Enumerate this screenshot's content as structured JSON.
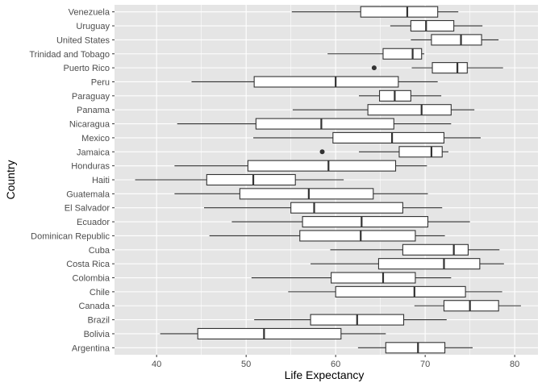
{
  "chart_data": {
    "type": "boxplot",
    "orientation": "horizontal",
    "xlabel": "Life Expectancy",
    "ylabel": "Country",
    "xlim": [
      35.3,
      82.6
    ],
    "x_ticks": [
      40,
      50,
      60,
      70,
      80
    ],
    "grid": true,
    "colors": {
      "panel": "#e5e5e5",
      "grid_major": "#ffffff",
      "box_fill": "#ffffff",
      "box_line": "#333333",
      "tick_label": "#4d4d4d"
    },
    "categories": [
      "Argentina",
      "Bolivia",
      "Brazil",
      "Canada",
      "Chile",
      "Colombia",
      "Costa Rica",
      "Cuba",
      "Dominican Republic",
      "Ecuador",
      "El Salvador",
      "Guatemala",
      "Haiti",
      "Honduras",
      "Jamaica",
      "Mexico",
      "Nicaragua",
      "Panama",
      "Paraguay",
      "Peru",
      "Puerto Rico",
      "Trinidad and Tobago",
      "United States",
      "Uruguay",
      "Venezuela"
    ],
    "boxes": [
      {
        "country": "Argentina",
        "min": 62.5,
        "q1": 65.6,
        "median": 69.2,
        "q3": 72.2,
        "max": 75.3,
        "outliers": []
      },
      {
        "country": "Bolivia",
        "min": 40.4,
        "q1": 44.6,
        "median": 52.0,
        "q3": 60.6,
        "max": 65.6,
        "outliers": []
      },
      {
        "country": "Brazil",
        "min": 50.9,
        "q1": 57.2,
        "median": 62.4,
        "q3": 67.6,
        "max": 72.4,
        "outliers": []
      },
      {
        "country": "Canada",
        "min": 68.8,
        "q1": 72.1,
        "median": 75.0,
        "q3": 78.2,
        "max": 80.7,
        "outliers": []
      },
      {
        "country": "Chile",
        "min": 54.7,
        "q1": 60.0,
        "median": 68.8,
        "q3": 74.5,
        "max": 78.6,
        "outliers": []
      },
      {
        "country": "Colombia",
        "min": 50.6,
        "q1": 59.5,
        "median": 65.3,
        "q3": 68.9,
        "max": 72.9,
        "outliers": []
      },
      {
        "country": "Costa Rica",
        "min": 57.2,
        "q1": 64.8,
        "median": 72.1,
        "q3": 76.1,
        "max": 78.8,
        "outliers": []
      },
      {
        "country": "Cuba",
        "min": 59.4,
        "q1": 67.5,
        "median": 73.2,
        "q3": 74.8,
        "max": 78.3,
        "outliers": []
      },
      {
        "country": "Dominican Republic",
        "min": 45.9,
        "q1": 56.0,
        "median": 62.8,
        "q3": 68.9,
        "max": 72.2,
        "outliers": []
      },
      {
        "country": "Ecuador",
        "min": 48.4,
        "q1": 56.3,
        "median": 62.9,
        "q3": 70.3,
        "max": 75.0,
        "outliers": []
      },
      {
        "country": "El Salvador",
        "min": 45.3,
        "q1": 55.0,
        "median": 57.6,
        "q3": 67.5,
        "max": 71.9,
        "outliers": []
      },
      {
        "country": "Guatemala",
        "min": 42.0,
        "q1": 49.3,
        "median": 57.0,
        "q3": 64.2,
        "max": 70.3,
        "outliers": []
      },
      {
        "country": "Haiti",
        "min": 37.6,
        "q1": 45.6,
        "median": 50.8,
        "q3": 55.5,
        "max": 60.9,
        "outliers": []
      },
      {
        "country": "Honduras",
        "min": 42.0,
        "q1": 50.2,
        "median": 59.2,
        "q3": 66.7,
        "max": 70.2,
        "outliers": []
      },
      {
        "country": "Jamaica",
        "min": 62.6,
        "q1": 67.1,
        "median": 70.7,
        "q3": 71.9,
        "max": 72.6,
        "outliers": [
          58.5
        ]
      },
      {
        "country": "Mexico",
        "min": 50.8,
        "q1": 59.7,
        "median": 66.3,
        "q3": 72.1,
        "max": 76.2,
        "outliers": []
      },
      {
        "country": "Nicaragua",
        "min": 42.3,
        "q1": 51.1,
        "median": 58.4,
        "q3": 66.5,
        "max": 72.9,
        "outliers": []
      },
      {
        "country": "Panama",
        "min": 55.2,
        "q1": 63.6,
        "median": 69.6,
        "q3": 72.9,
        "max": 75.5,
        "outliers": []
      },
      {
        "country": "Paraguay",
        "min": 62.6,
        "q1": 64.9,
        "median": 66.6,
        "q3": 68.4,
        "max": 71.8,
        "outliers": []
      },
      {
        "country": "Peru",
        "min": 43.9,
        "q1": 50.9,
        "median": 60.0,
        "q3": 67.0,
        "max": 71.4,
        "outliers": []
      },
      {
        "country": "Puerto Rico",
        "min": 68.5,
        "q1": 70.8,
        "median": 73.6,
        "q3": 74.7,
        "max": 78.7,
        "outliers": [
          64.3
        ]
      },
      {
        "country": "Trinidad and Tobago",
        "min": 59.1,
        "q1": 65.3,
        "median": 68.6,
        "q3": 69.6,
        "max": 69.9,
        "outliers": []
      },
      {
        "country": "United States",
        "min": 68.4,
        "q1": 70.7,
        "median": 74.0,
        "q3": 76.3,
        "max": 78.2,
        "outliers": []
      },
      {
        "country": "Uruguay",
        "min": 66.1,
        "q1": 68.4,
        "median": 70.1,
        "q3": 73.2,
        "max": 76.4,
        "outliers": []
      },
      {
        "country": "Venezuela",
        "min": 55.1,
        "q1": 62.8,
        "median": 68.0,
        "q3": 71.4,
        "max": 73.7,
        "outliers": []
      }
    ]
  }
}
